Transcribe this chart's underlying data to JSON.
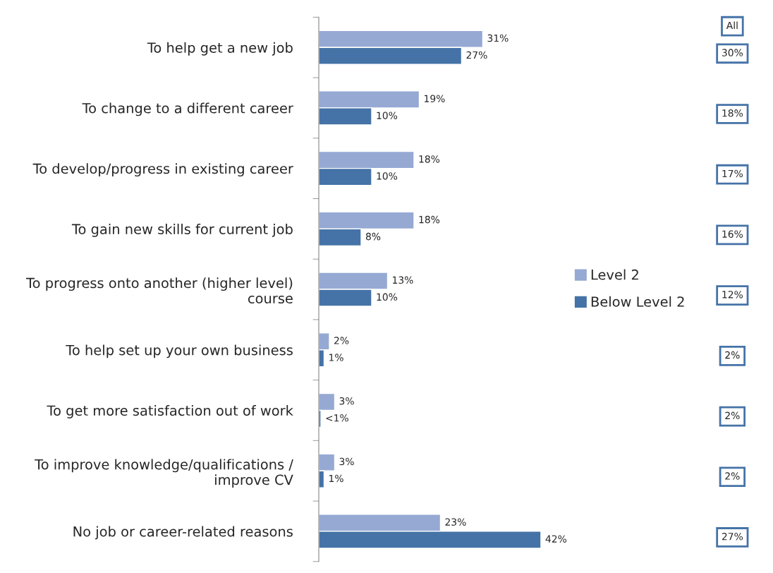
{
  "chart_data": {
    "type": "bar",
    "orientation": "horizontal",
    "legend": "right",
    "grid": false,
    "categories": [
      "To help get a new job",
      "To change to a different career",
      "To develop/progress in existing career",
      "To gain new skills for current job",
      "To progress onto another (higher level)\ncourse",
      "To help set up your own business",
      "To get more satisfaction out of work",
      "To improve knowledge/qualifications /\nimprove CV",
      "No job or career-related reasons"
    ],
    "series": [
      {
        "name": "Level 2",
        "color": "#95a9d3",
        "values": [
          31,
          19,
          18,
          18,
          13,
          2,
          3,
          3,
          23
        ],
        "value_labels": [
          "31%",
          "19%",
          "18%",
          "18%",
          "13%",
          "2%",
          "3%",
          "3%",
          "23%"
        ]
      },
      {
        "name": "Below Level 2",
        "color": "#4573a7",
        "values": [
          27,
          10,
          10,
          8,
          10,
          1,
          0.4,
          1,
          42
        ],
        "value_labels": [
          "27%",
          "10%",
          "10%",
          "8%",
          "10%",
          "1%",
          "<1%",
          "1%",
          "42%"
        ]
      }
    ],
    "annotations": [
      "All",
      "30%",
      "18%",
      "17%",
      "16%",
      "12%",
      "2%",
      "2%",
      "2%",
      "27%"
    ]
  }
}
